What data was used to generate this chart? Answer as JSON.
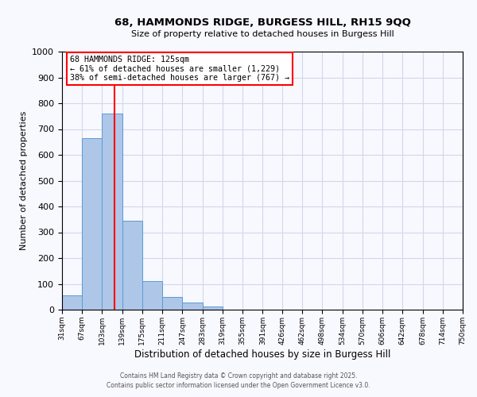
{
  "title_line1": "68, HAMMONDS RIDGE, BURGESS HILL, RH15 9QQ",
  "title_line2": "Size of property relative to detached houses in Burgess Hill",
  "xlabel": "Distribution of detached houses by size in Burgess Hill",
  "ylabel": "Number of detached properties",
  "bin_edges": [
    31,
    67,
    103,
    139,
    175,
    211,
    247,
    283,
    319,
    355,
    391,
    426,
    462,
    498,
    534,
    570,
    606,
    642,
    678,
    714,
    750
  ],
  "bin_labels": [
    "31sqm",
    "67sqm",
    "103sqm",
    "139sqm",
    "175sqm",
    "211sqm",
    "247sqm",
    "283sqm",
    "319sqm",
    "355sqm",
    "391sqm",
    "426sqm",
    "462sqm",
    "498sqm",
    "534sqm",
    "570sqm",
    "606sqm",
    "642sqm",
    "678sqm",
    "714sqm",
    "750sqm"
  ],
  "bar_heights": [
    55,
    665,
    760,
    345,
    110,
    50,
    27,
    13,
    0,
    0,
    0,
    0,
    0,
    0,
    0,
    0,
    0,
    0,
    0,
    0
  ],
  "bar_color": "#aec6e8",
  "bar_edge_color": "#5b9bd5",
  "vline_x": 125,
  "vline_color": "red",
  "ylim": [
    0,
    1000
  ],
  "yticks": [
    0,
    100,
    200,
    300,
    400,
    500,
    600,
    700,
    800,
    900,
    1000
  ],
  "annotation_text_line1": "68 HAMMONDS RIDGE: 125sqm",
  "annotation_text_line2": "← 61% of detached houses are smaller (1,229)",
  "annotation_text_line3": "38% of semi-detached houses are larger (767) →",
  "footer_line1": "Contains HM Land Registry data © Crown copyright and database right 2025.",
  "footer_line2": "Contains public sector information licensed under the Open Government Licence v3.0.",
  "background_color": "#f8f8ff",
  "grid_color": "#d0d8e8"
}
